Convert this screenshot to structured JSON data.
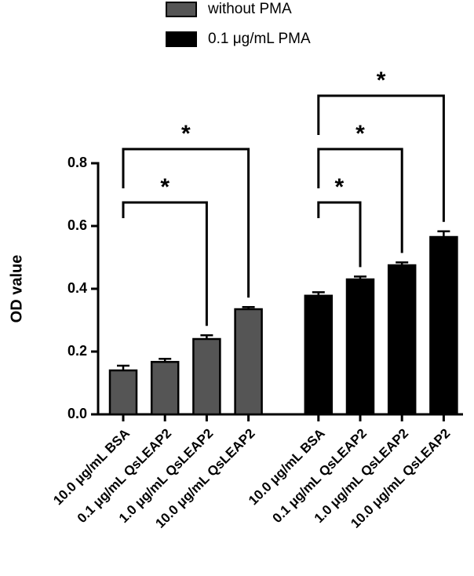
{
  "chart_data": {
    "type": "bar",
    "y_label": "OD value",
    "categories": [
      "10.0 μg/mL BSA",
      "0.1 μg/mL QsLEAP2",
      "1.0 μg/mL QsLEAP2",
      "10.0 μg/mL QsLEAP2",
      "10.0 μg/mL BSA",
      "0.1 μg/mL QsLEAP2",
      "1.0 μg/mL QsLEAP2",
      "10.0 μg/mL QsLEAP2"
    ],
    "series": [
      {
        "name": "without PMA",
        "color": "#555555",
        "values": [
          0.14,
          0.167,
          0.24,
          0.335,
          null,
          null,
          null,
          null
        ],
        "errors": [
          0.015,
          0.01,
          0.012,
          0.007,
          null,
          null,
          null,
          null
        ]
      },
      {
        "name": "0.1 μg/mL PMA",
        "color": "#000000",
        "values": [
          null,
          null,
          null,
          null,
          0.378,
          0.43,
          0.475,
          0.565
        ],
        "errors": [
          null,
          null,
          null,
          null,
          0.011,
          0.009,
          0.009,
          0.018
        ]
      }
    ],
    "ylim": [
      0,
      0.8
    ],
    "yticks": [
      {
        "value": 0,
        "label": "0.0"
      },
      {
        "value": 0.2,
        "label": "0.2"
      },
      {
        "value": 0.4,
        "label": "0.4"
      },
      {
        "value": 0.6,
        "label": "0.6"
      },
      {
        "value": 0.8,
        "label": "0.8"
      }
    ],
    "significance": [
      {
        "from": 0,
        "to": 2,
        "label": "*"
      },
      {
        "from": 0,
        "to": 3,
        "label": "*"
      },
      {
        "from": 4,
        "to": 5,
        "label": "*"
      },
      {
        "from": 4,
        "to": 6,
        "label": "*"
      },
      {
        "from": 4,
        "to": 7,
        "label": "*"
      }
    ]
  }
}
